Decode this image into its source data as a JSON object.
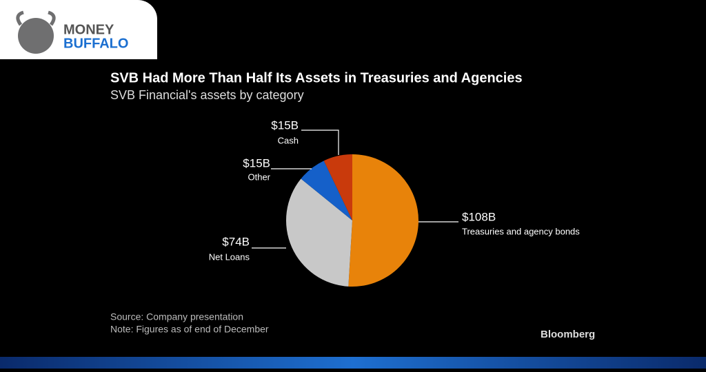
{
  "logo": {
    "line1": "MONEY",
    "line2": "BUFFALO"
  },
  "chart_data": {
    "type": "pie",
    "title": "SVB Had More Than Half Its Assets in Treasuries and Agencies",
    "subtitle": "SVB Financial's assets by category",
    "categories": [
      "Treasuries and agency bonds",
      "Net Loans",
      "Other",
      "Cash"
    ],
    "values": [
      108,
      74,
      15,
      15
    ],
    "value_labels": [
      "$108B",
      "$74B",
      "$15B",
      "$15B"
    ],
    "colors": [
      "#e8830a",
      "#c8c8c8",
      "#1560c9",
      "#c93a0c"
    ],
    "source": "Source: Company presentation",
    "note": "Note: Figures as of end of December"
  },
  "brand": "Bloomberg"
}
